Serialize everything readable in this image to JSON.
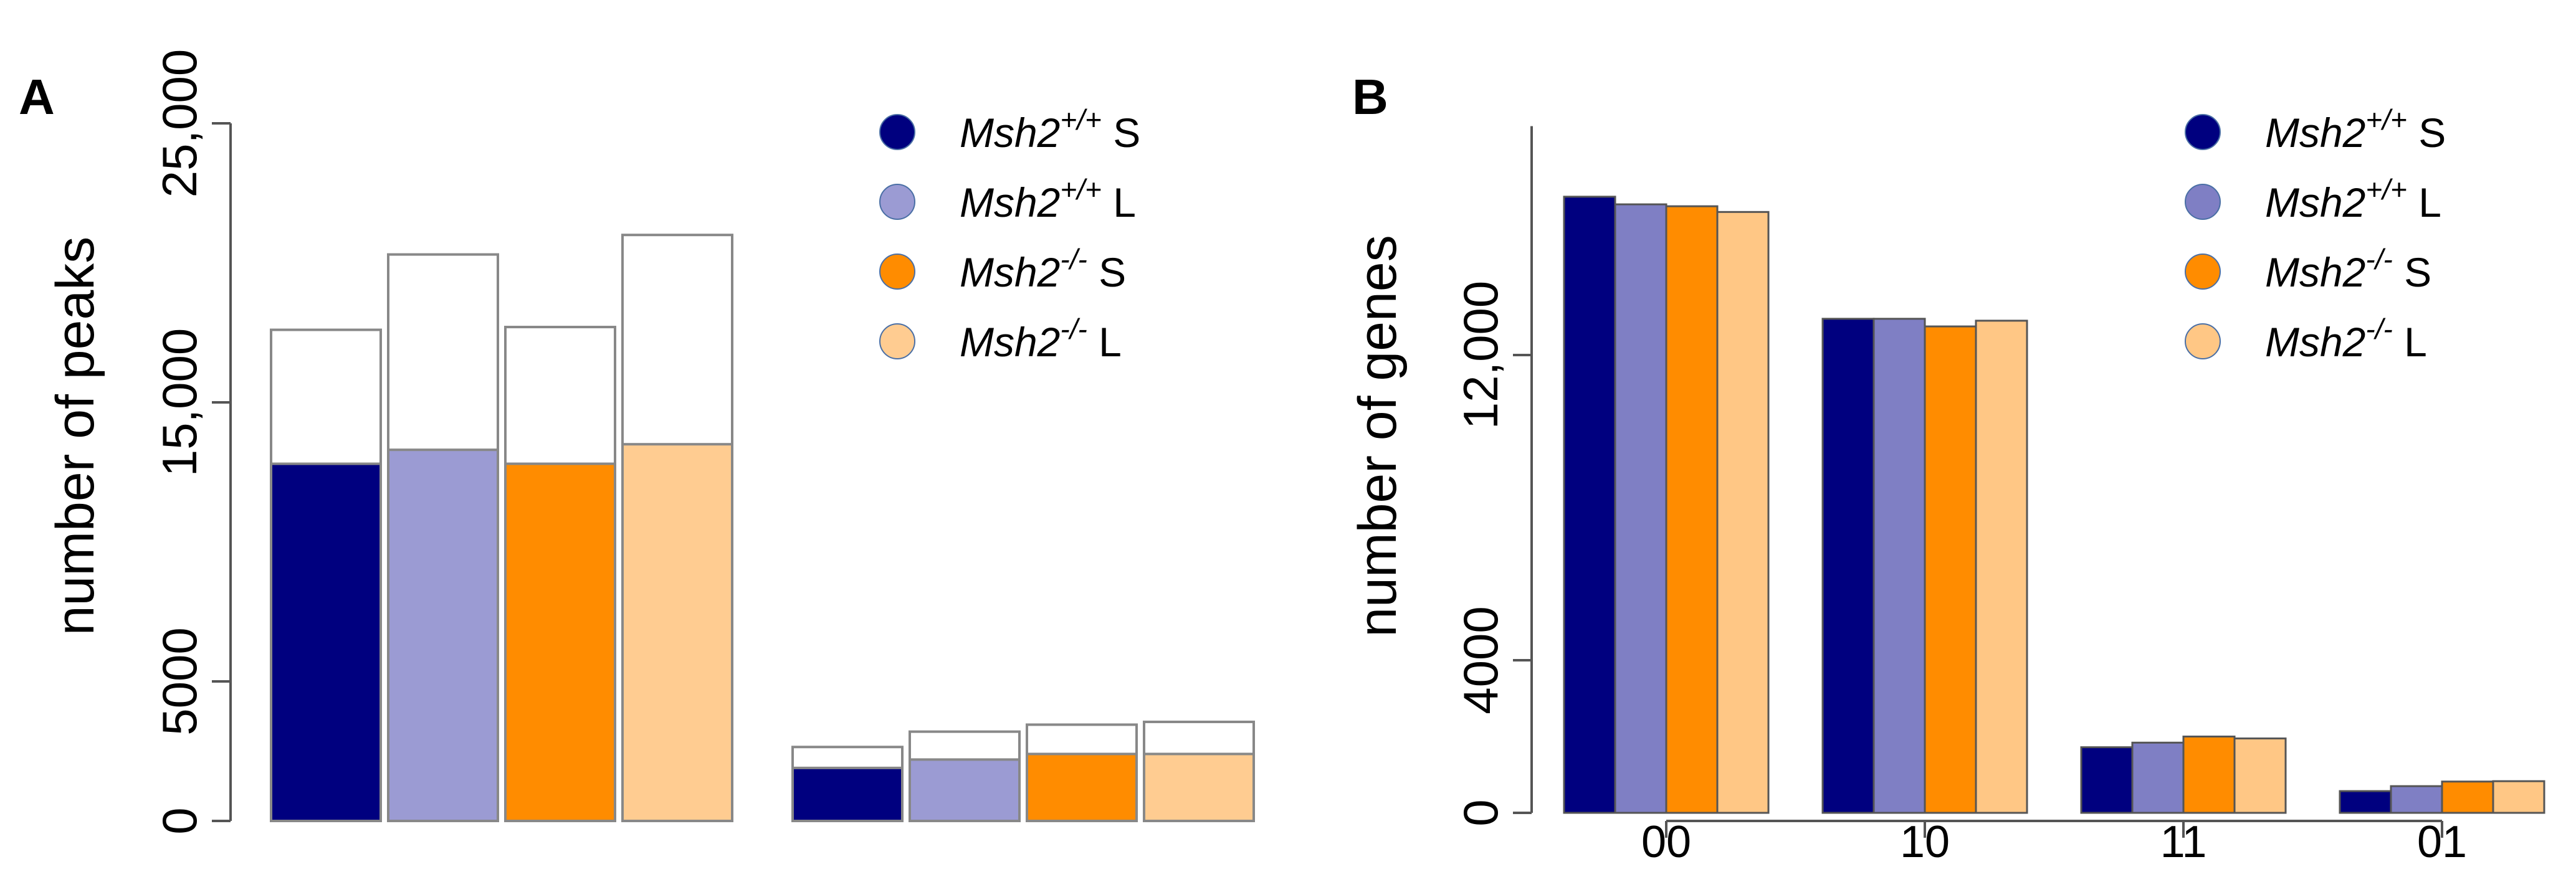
{
  "chart_data": [
    {
      "panel": "A",
      "type": "bar",
      "variant": "stacked-overlay",
      "ylabel": "number of peaks",
      "ylim": [
        0,
        25000
      ],
      "yticks": [
        {
          "value": 0,
          "label": "0"
        },
        {
          "value": 5000,
          "label": "5000"
        },
        {
          "value": 15000,
          "label": "15,000"
        },
        {
          "value": 25000,
          "label": "25,000"
        }
      ],
      "groups": [
        {
          "series_values": [
            12800,
            13300,
            12800,
            13500
          ],
          "outline_values": [
            17600,
            20300,
            17700,
            21000
          ]
        },
        {
          "series_values": [
            1900,
            2200,
            2400,
            2400
          ],
          "outline_values": [
            2650,
            3200,
            3450,
            3550
          ]
        }
      ],
      "series": [
        {
          "name": "Msh2+/+ S",
          "color": "#00007f"
        },
        {
          "name": "Msh2+/+ L",
          "color": "#9b9bd3"
        },
        {
          "name": "Msh2-/- S",
          "color": "#ff8c00"
        },
        {
          "name": "Msh2-/- L",
          "color": "#ffcc91"
        }
      ],
      "legend": {
        "position": "top-right",
        "items": [
          {
            "gene": "Msh2",
            "sup": "+/+",
            "suffix": "S",
            "color": "#00007f"
          },
          {
            "gene": "Msh2",
            "sup": "+/+",
            "suffix": "L",
            "color": "#9b9bd3"
          },
          {
            "gene": "Msh2",
            "sup": "-/-",
            "suffix": "S",
            "color": "#ff8c00"
          },
          {
            "gene": "Msh2",
            "sup": "-/-",
            "suffix": "L",
            "color": "#ffcc91"
          }
        ]
      }
    },
    {
      "panel": "B",
      "type": "bar",
      "variant": "grouped",
      "ylabel": "number of genes",
      "ylim": [
        0,
        18000
      ],
      "yticks": [
        {
          "value": 0,
          "label": "0"
        },
        {
          "value": 4000,
          "label": "4000"
        },
        {
          "value": 12000,
          "label": "12,000"
        }
      ],
      "categories": [
        "00",
        "10",
        "11",
        "01"
      ],
      "series": [
        {
          "name": "Msh2+/+ S",
          "color": "#00007f",
          "values": [
            16150,
            12950,
            1720,
            570
          ]
        },
        {
          "name": "Msh2+/+ L",
          "color": "#7f7fc4",
          "values": [
            15950,
            12950,
            1840,
            700
          ]
        },
        {
          "name": "Msh2-/- S",
          "color": "#ff8c00",
          "values": [
            15900,
            12750,
            2000,
            820
          ]
        },
        {
          "name": "Msh2-/- L",
          "color": "#ffc785",
          "values": [
            15750,
            12900,
            1950,
            830
          ]
        }
      ],
      "legend": {
        "position": "top-right",
        "items": [
          {
            "gene": "Msh2",
            "sup": "+/+",
            "suffix": "S",
            "color": "#00007f"
          },
          {
            "gene": "Msh2",
            "sup": "+/+",
            "suffix": "L",
            "color": "#7f7fc4"
          },
          {
            "gene": "Msh2",
            "sup": "-/-",
            "suffix": "S",
            "color": "#ff8c00"
          },
          {
            "gene": "Msh2",
            "sup": "-/-",
            "suffix": "L",
            "color": "#ffc785"
          }
        ]
      }
    }
  ]
}
